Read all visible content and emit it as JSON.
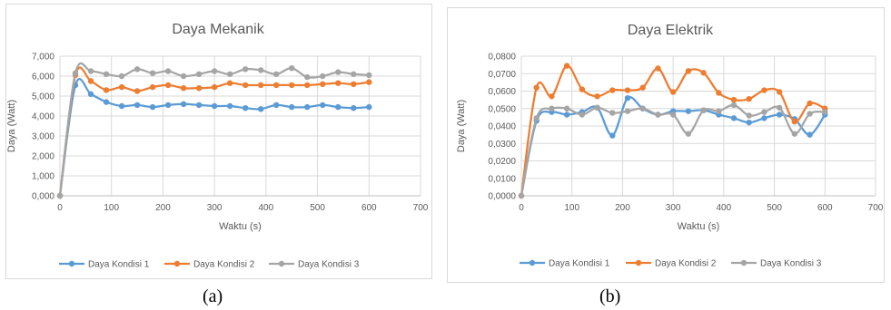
{
  "captions": [
    "(a)",
    "(b)"
  ],
  "colors": {
    "series1": "#5B9BD5",
    "series2": "#ED7D31",
    "series3": "#A5A5A5"
  },
  "chart_data": [
    {
      "type": "line",
      "title": "Daya Mekanik",
      "xlabel": "Waktu (s)",
      "ylabel": "Daya (Watt)",
      "xlim": [
        0,
        700
      ],
      "ylim": [
        0,
        7
      ],
      "xticks": [
        "0",
        "100",
        "200",
        "300",
        "400",
        "500",
        "600",
        "700"
      ],
      "yticks": [
        "0,000",
        "1,000",
        "2,000",
        "3,000",
        "4,000",
        "5,000",
        "6,000",
        "7,000"
      ],
      "grid": true,
      "legend": "bottom",
      "x": [
        0,
        30,
        60,
        90,
        120,
        150,
        180,
        210,
        240,
        270,
        300,
        330,
        360,
        390,
        420,
        450,
        480,
        510,
        540,
        570,
        600
      ],
      "series": [
        {
          "name": "Daya Kondisi 1",
          "values": [
            0,
            5.55,
            5.1,
            4.7,
            4.5,
            4.55,
            4.45,
            4.55,
            4.6,
            4.55,
            4.5,
            4.5,
            4.4,
            4.35,
            4.55,
            4.45,
            4.45,
            4.55,
            4.45,
            4.4,
            4.45
          ]
        },
        {
          "name": "Daya Kondisi 2",
          "values": [
            0,
            6.05,
            5.75,
            5.3,
            5.45,
            5.25,
            5.45,
            5.55,
            5.4,
            5.4,
            5.45,
            5.65,
            5.55,
            5.55,
            5.55,
            5.55,
            5.55,
            5.6,
            5.65,
            5.6,
            5.7
          ]
        },
        {
          "name": "Daya Kondisi 3",
          "values": [
            0,
            6.15,
            6.25,
            6.1,
            6.0,
            6.35,
            6.15,
            6.25,
            6.0,
            6.1,
            6.25,
            6.1,
            6.35,
            6.3,
            6.1,
            6.4,
            5.95,
            6.0,
            6.2,
            6.1,
            6.05
          ]
        }
      ]
    },
    {
      "type": "line",
      "title": "Daya Elektrik",
      "xlabel": "Waktu (s)",
      "ylabel": "Daya (Watt)",
      "xlim": [
        0,
        700
      ],
      "ylim": [
        0,
        0.08
      ],
      "xticks": [
        "0",
        "100",
        "200",
        "300",
        "400",
        "500",
        "600",
        "700"
      ],
      "yticks": [
        "0,0000",
        "0,0100",
        "0,0200",
        "0,0300",
        "0,0400",
        "0,0500",
        "0,0600",
        "0,0700",
        "0,0800"
      ],
      "grid": true,
      "legend": "bottom",
      "x": [
        0,
        30,
        60,
        90,
        120,
        150,
        180,
        210,
        240,
        270,
        300,
        330,
        360,
        390,
        420,
        450,
        480,
        510,
        540,
        570,
        600
      ],
      "series": [
        {
          "name": "Daya Kondisi 1",
          "values": [
            0,
            0.043,
            0.048,
            0.0465,
            0.048,
            0.0505,
            0.0345,
            0.056,
            0.05,
            0.0465,
            0.0485,
            0.0485,
            0.049,
            0.0465,
            0.0445,
            0.042,
            0.0445,
            0.0465,
            0.044,
            0.035,
            0.0465
          ]
        },
        {
          "name": "Daya Kondisi 2",
          "values": [
            0,
            0.062,
            0.057,
            0.0745,
            0.061,
            0.057,
            0.0605,
            0.0605,
            0.062,
            0.073,
            0.0595,
            0.0715,
            0.0705,
            0.059,
            0.055,
            0.0555,
            0.0605,
            0.0595,
            0.0425,
            0.053,
            0.05
          ]
        },
        {
          "name": "Daya Kondisi 3",
          "values": [
            0,
            0.0445,
            0.05,
            0.05,
            0.0465,
            0.0505,
            0.0475,
            0.0485,
            0.05,
            0.0465,
            0.0465,
            0.0355,
            0.049,
            0.0485,
            0.052,
            0.046,
            0.048,
            0.0505,
            0.0355,
            0.047,
            0.048
          ]
        }
      ]
    }
  ]
}
